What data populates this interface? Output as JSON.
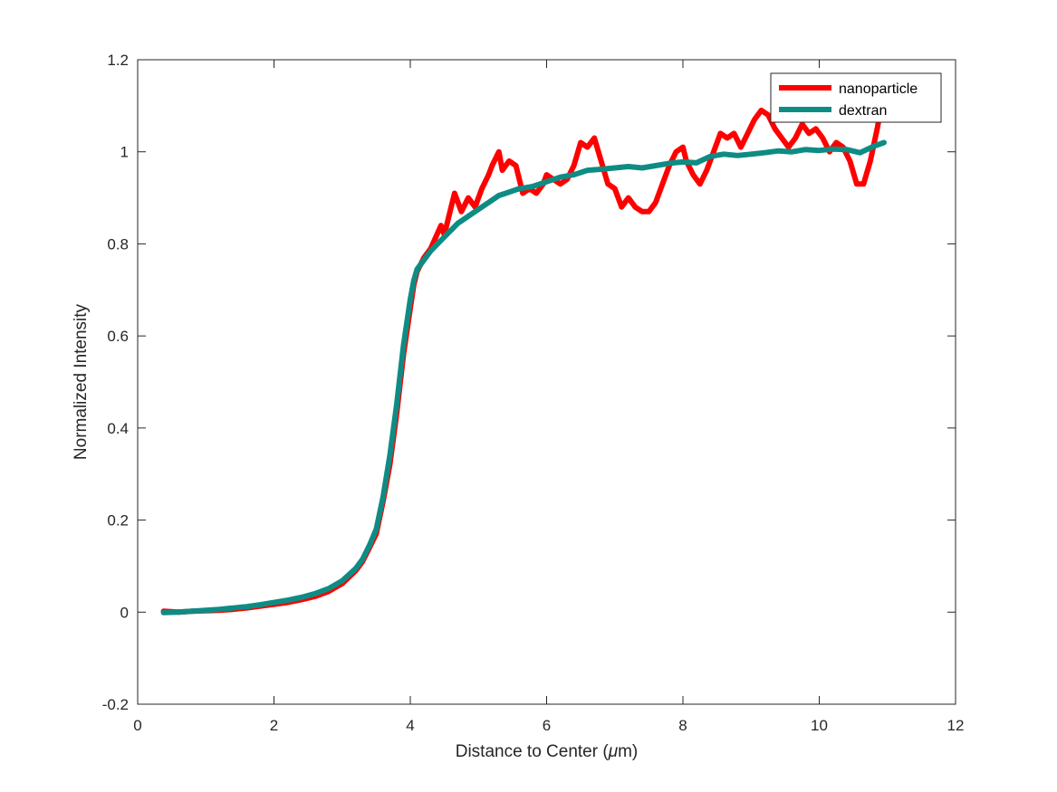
{
  "chart_data": {
    "type": "line",
    "title": "",
    "xlabel_prefix": "Distance to Center (",
    "xlabel_unit_greek": "μ",
    "xlabel_suffix": "m)",
    "ylabel": "Normalized Intensity",
    "xlim": [
      0,
      12
    ],
    "ylim": [
      -0.2,
      1.2
    ],
    "xticks": [
      0,
      2,
      4,
      6,
      8,
      10,
      12
    ],
    "yticks": [
      -0.2,
      0,
      0.2,
      0.4,
      0.6,
      0.8,
      1.0,
      1.2
    ],
    "xtick_labels": [
      "0",
      "2",
      "4",
      "6",
      "8",
      "10",
      "12"
    ],
    "ytick_labels": [
      "-0.2",
      "0",
      "0.2",
      "0.4",
      "0.6",
      "0.8",
      "1",
      "1.2"
    ],
    "grid": false,
    "legend_position": "top-right",
    "series": [
      {
        "name": "nanoparticle",
        "color": "#ff0000",
        "points": [
          [
            0.38,
            0.002
          ],
          [
            0.6,
            0.0
          ],
          [
            0.8,
            0.002
          ],
          [
            1.0,
            0.003
          ],
          [
            1.2,
            0.004
          ],
          [
            1.4,
            0.006
          ],
          [
            1.6,
            0.009
          ],
          [
            1.8,
            0.013
          ],
          [
            2.0,
            0.017
          ],
          [
            2.2,
            0.021
          ],
          [
            2.4,
            0.027
          ],
          [
            2.6,
            0.034
          ],
          [
            2.8,
            0.045
          ],
          [
            3.0,
            0.062
          ],
          [
            3.2,
            0.09
          ],
          [
            3.3,
            0.11
          ],
          [
            3.4,
            0.14
          ],
          [
            3.5,
            0.17
          ],
          [
            3.6,
            0.24
          ],
          [
            3.7,
            0.32
          ],
          [
            3.8,
            0.43
          ],
          [
            3.9,
            0.56
          ],
          [
            4.0,
            0.66
          ],
          [
            4.05,
            0.71
          ],
          [
            4.1,
            0.74
          ],
          [
            4.2,
            0.77
          ],
          [
            4.3,
            0.79
          ],
          [
            4.45,
            0.84
          ],
          [
            4.5,
            0.82
          ],
          [
            4.6,
            0.88
          ],
          [
            4.65,
            0.91
          ],
          [
            4.75,
            0.87
          ],
          [
            4.85,
            0.9
          ],
          [
            4.95,
            0.88
          ],
          [
            5.05,
            0.92
          ],
          [
            5.15,
            0.95
          ],
          [
            5.2,
            0.97
          ],
          [
            5.3,
            1.0
          ],
          [
            5.35,
            0.96
          ],
          [
            5.45,
            0.98
          ],
          [
            5.55,
            0.97
          ],
          [
            5.65,
            0.91
          ],
          [
            5.75,
            0.92
          ],
          [
            5.85,
            0.91
          ],
          [
            5.95,
            0.93
          ],
          [
            6.0,
            0.95
          ],
          [
            6.1,
            0.94
          ],
          [
            6.2,
            0.93
          ],
          [
            6.3,
            0.94
          ],
          [
            6.4,
            0.97
          ],
          [
            6.5,
            1.02
          ],
          [
            6.6,
            1.01
          ],
          [
            6.7,
            1.03
          ],
          [
            6.8,
            0.98
          ],
          [
            6.9,
            0.93
          ],
          [
            7.0,
            0.92
          ],
          [
            7.1,
            0.88
          ],
          [
            7.2,
            0.9
          ],
          [
            7.3,
            0.88
          ],
          [
            7.4,
            0.87
          ],
          [
            7.5,
            0.87
          ],
          [
            7.6,
            0.89
          ],
          [
            7.7,
            0.93
          ],
          [
            7.8,
            0.97
          ],
          [
            7.9,
            1.0
          ],
          [
            8.0,
            1.01
          ],
          [
            8.05,
            0.98
          ],
          [
            8.15,
            0.95
          ],
          [
            8.25,
            0.93
          ],
          [
            8.35,
            0.96
          ],
          [
            8.45,
            1.0
          ],
          [
            8.55,
            1.04
          ],
          [
            8.65,
            1.03
          ],
          [
            8.75,
            1.04
          ],
          [
            8.85,
            1.01
          ],
          [
            8.95,
            1.04
          ],
          [
            9.05,
            1.07
          ],
          [
            9.15,
            1.09
          ],
          [
            9.25,
            1.08
          ],
          [
            9.35,
            1.05
          ],
          [
            9.45,
            1.03
          ],
          [
            9.55,
            1.01
          ],
          [
            9.65,
            1.03
          ],
          [
            9.75,
            1.06
          ],
          [
            9.85,
            1.04
          ],
          [
            9.95,
            1.05
          ],
          [
            10.05,
            1.03
          ],
          [
            10.15,
            1.0
          ],
          [
            10.25,
            1.02
          ],
          [
            10.35,
            1.01
          ],
          [
            10.45,
            0.98
          ],
          [
            10.55,
            0.93
          ],
          [
            10.65,
            0.93
          ],
          [
            10.75,
            0.98
          ],
          [
            10.85,
            1.05
          ],
          [
            10.9,
            1.09
          ],
          [
            10.95,
            1.12
          ]
        ]
      },
      {
        "name": "dextran",
        "color": "#0e8c84",
        "points": [
          [
            0.38,
            -0.001
          ],
          [
            0.6,
            0.0
          ],
          [
            0.8,
            0.002
          ],
          [
            1.0,
            0.004
          ],
          [
            1.2,
            0.006
          ],
          [
            1.4,
            0.009
          ],
          [
            1.6,
            0.012
          ],
          [
            1.8,
            0.016
          ],
          [
            2.0,
            0.021
          ],
          [
            2.2,
            0.026
          ],
          [
            2.4,
            0.032
          ],
          [
            2.6,
            0.04
          ],
          [
            2.8,
            0.051
          ],
          [
            3.0,
            0.068
          ],
          [
            3.2,
            0.095
          ],
          [
            3.3,
            0.115
          ],
          [
            3.4,
            0.145
          ],
          [
            3.5,
            0.18
          ],
          [
            3.6,
            0.25
          ],
          [
            3.7,
            0.34
          ],
          [
            3.8,
            0.45
          ],
          [
            3.9,
            0.58
          ],
          [
            4.0,
            0.68
          ],
          [
            4.05,
            0.72
          ],
          [
            4.1,
            0.745
          ],
          [
            4.2,
            0.765
          ],
          [
            4.3,
            0.785
          ],
          [
            4.4,
            0.8
          ],
          [
            4.5,
            0.815
          ],
          [
            4.6,
            0.83
          ],
          [
            4.7,
            0.845
          ],
          [
            4.8,
            0.855
          ],
          [
            4.9,
            0.865
          ],
          [
            5.0,
            0.875
          ],
          [
            5.1,
            0.885
          ],
          [
            5.2,
            0.895
          ],
          [
            5.3,
            0.905
          ],
          [
            5.4,
            0.91
          ],
          [
            5.5,
            0.915
          ],
          [
            5.6,
            0.92
          ],
          [
            5.8,
            0.925
          ],
          [
            6.0,
            0.935
          ],
          [
            6.2,
            0.945
          ],
          [
            6.4,
            0.95
          ],
          [
            6.6,
            0.96
          ],
          [
            6.8,
            0.962
          ],
          [
            7.0,
            0.965
          ],
          [
            7.2,
            0.968
          ],
          [
            7.4,
            0.965
          ],
          [
            7.6,
            0.97
          ],
          [
            7.8,
            0.975
          ],
          [
            8.0,
            0.978
          ],
          [
            8.2,
            0.976
          ],
          [
            8.4,
            0.99
          ],
          [
            8.6,
            0.995
          ],
          [
            8.8,
            0.992
          ],
          [
            9.0,
            0.995
          ],
          [
            9.2,
            0.998
          ],
          [
            9.4,
            1.002
          ],
          [
            9.6,
            1.0
          ],
          [
            9.8,
            1.005
          ],
          [
            10.0,
            1.003
          ],
          [
            10.2,
            1.006
          ],
          [
            10.4,
            1.005
          ],
          [
            10.6,
            0.998
          ],
          [
            10.8,
            1.012
          ],
          [
            10.95,
            1.02
          ]
        ]
      }
    ]
  }
}
